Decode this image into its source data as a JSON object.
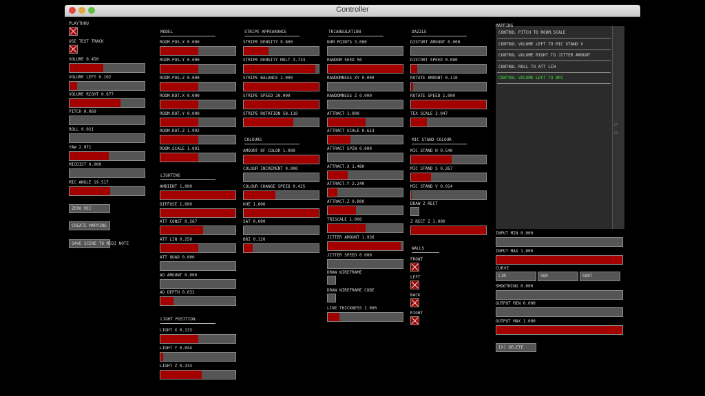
{
  "window": {
    "title": "Controller"
  },
  "left": {
    "toggles": [
      {
        "label": "PLAYTHRU",
        "on": true
      },
      {
        "label": "USE TEST TRACK",
        "on": true
      }
    ],
    "sliders": [
      {
        "label": "VOLUME   0.450",
        "value": 0.45
      },
      {
        "label": "VOLUME LEFT   0.102",
        "value": 0.102
      },
      {
        "label": "VOLUME RIGHT   0.677",
        "value": 0.677
      },
      {
        "label": "PITCH   0.060",
        "value": 0.0
      },
      {
        "label": "ROLL   0.021",
        "value": 0.0
      },
      {
        "label": "YAW   2.971",
        "value": 0.52
      },
      {
        "label": "MICDIST   0.000",
        "value": 0.0
      },
      {
        "label": "MIC ANGLE   19.517",
        "value": 0.54
      }
    ],
    "buttons": [
      "ZERO MIC",
      "CREATE MAPPING",
      "SAVE SCENE TO MIDI NOTE"
    ]
  },
  "model": {
    "header": "MODEL",
    "sliders": [
      {
        "label": "ROOM.POS.X   0.000",
        "value": 0.5
      },
      {
        "label": "ROOM.POS.Y   0.000",
        "value": 0.5
      },
      {
        "label": "ROOM.POS.Z   0.000",
        "value": 0.5
      },
      {
        "label": "ROOM.ROT.X   0.000",
        "value": 0.5
      },
      {
        "label": "ROOM.ROT.Y   0.000",
        "value": 0.5
      },
      {
        "label": "ROOM.ROT.Z   1.992",
        "value": 0.5
      },
      {
        "label": "ROOM.SCALE   1.001",
        "value": 0.5
      }
    ]
  },
  "lighting": {
    "header": "LIGHTING",
    "sliders": [
      {
        "label": "AMBIENT   1.000",
        "value": 1.0
      },
      {
        "label": "DIFFUSE   1.000",
        "value": 1.0
      },
      {
        "label": "ATT CONST   0.567",
        "value": 0.57
      },
      {
        "label": "ATT LIN   0.250",
        "value": 0.5
      },
      {
        "label": "ATT QUAD   0.000",
        "value": 0.0
      },
      {
        "label": "AO AMOUNT   0.000",
        "value": 0.0
      },
      {
        "label": "AO DEPTH   0.033",
        "value": 0.17
      }
    ]
  },
  "lightpos": {
    "header": "LIGHT POSITION",
    "sliders": [
      {
        "label": "LIGHT X   0.133",
        "value": 0.5
      },
      {
        "label": "LIGHT Y   0.044",
        "value": 0.04
      },
      {
        "label": "LIGHT Z   0.333",
        "value": 0.55
      }
    ]
  },
  "stripe": {
    "header": "STRIPE APPEARANCE",
    "sliders": [
      {
        "label": "STRIPE DENSITY   9.800",
        "value": 0.33
      },
      {
        "label": "STRIPE DENSITY MULT   3.733",
        "value": 0.95
      },
      {
        "label": "STRIPE BALANCE   1.000",
        "value": 1.0
      },
      {
        "label": "STRIPE SPEED   20.000",
        "value": 1.0
      },
      {
        "label": "STRIPE ROTATION   58.110",
        "value": 0.66
      }
    ]
  },
  "colours": {
    "header": "COLOURS",
    "sliders": [
      {
        "label": "AMOUNT OF COLOR   1.000",
        "value": 1.0
      },
      {
        "label": "COLOUR INCREMENT   0.000",
        "value": 0.0
      },
      {
        "label": "COLOUR CHANGE SPEED   0.425",
        "value": 0.42
      },
      {
        "label": "HUE   1.000",
        "value": 1.0
      },
      {
        "label": "SAT   0.000",
        "value": 0.0
      },
      {
        "label": "BRI   0.120",
        "value": 0.12
      }
    ]
  },
  "triangulation": {
    "header": "TRIANGULATION",
    "sliders": [
      {
        "label": "NUM POINTS   3.000",
        "value": 0.0
      },
      {
        "label": "RANDOM SEED   50",
        "value": 1.0
      },
      {
        "label": "RANDOMNESS XY   0.000",
        "value": 0.0
      },
      {
        "label": "RANDOMNESS Z   0.000",
        "value": 0.0
      },
      {
        "label": "ATTRACT   1.000",
        "value": 0.5
      },
      {
        "label": "ATTRACT SCALE   0.613",
        "value": 0.3
      },
      {
        "label": "ATTRACT SPIN   0.000",
        "value": 0.0
      },
      {
        "label": "ATTRACT.X   1.480",
        "value": 0.27
      },
      {
        "label": "ATTRACT.Y   2.240",
        "value": 0.13
      },
      {
        "label": "ATTRACT.Z   0.800",
        "value": 0.38
      },
      {
        "label": "TRISCALE   1.000",
        "value": 0.5
      },
      {
        "label": "JITTER AMOUNT   1.936",
        "value": 0.97
      },
      {
        "label": "JITTER SPEED   0.000",
        "value": 0.0
      }
    ],
    "toggles": [
      {
        "label": "DRAW WIREFRAME",
        "on": false
      },
      {
        "label": "DRAW WIREFRAME CUBE",
        "on": false
      }
    ],
    "line_thickness": {
      "label": "LINE THICKNESS   2.900",
      "value": 0.16
    }
  },
  "dazzle": {
    "header": "DAZZLE",
    "sliders": [
      {
        "label": "DISTORT AMOUNT   0.000",
        "value": 0.0
      },
      {
        "label": "DISTORT SPEED   0.080",
        "value": 0.08
      },
      {
        "label": "ROTATE AMOUNT   0.110",
        "value": 0.03
      },
      {
        "label": "ROTATE SPEED   1.000",
        "value": 1.0
      },
      {
        "label": "TEX SCALE   3.047",
        "value": 0.21
      }
    ]
  },
  "micstand": {
    "header": "MIC STAND COLOUR",
    "sliders": [
      {
        "label": "MIC STAND H   0.540",
        "value": 0.54
      },
      {
        "label": "MIC STAND S   0.267",
        "value": 0.27
      },
      {
        "label": "MIC STAND V   0.014",
        "value": 0.01
      }
    ],
    "draw_z_rect": {
      "label": "DRAW Z RECT",
      "on": false
    },
    "z_rect_z": {
      "label": "Z RECT Z   1.000",
      "value": 1.0
    }
  },
  "walls": {
    "header": "WALLS",
    "toggles": [
      {
        "label": "FRONT",
        "on": true
      },
      {
        "label": "LEFT",
        "on": true
      },
      {
        "label": "BACK",
        "on": true
      },
      {
        "label": "RIGHT",
        "on": true
      }
    ]
  },
  "mapping": {
    "header": "MAPPING",
    "items": [
      "CONTROL PITCH TO ROOM.SCALE",
      "CONTROL VOLUME LEFT TO MIC STAND V",
      "CONTROL VOLUME RIGHT TO JITTER AMOUNT",
      "CONTROL ROLL TO ATT LIN",
      "CONTROL VOLUME LEFT TO BRI"
    ],
    "selected_index": 4,
    "scroll_up": "UP",
    "scroll_down": "DN",
    "input_min": {
      "label": "INPUT MIN   0.000",
      "value": 0.0
    },
    "input_max": {
      "label": "INPUT MAX   1.000",
      "value": 1.0
    },
    "curve_label": "CURVE",
    "curve_options": [
      "LIN",
      "SQR",
      "SQRT"
    ],
    "smoothing": {
      "label": "SMOOTHING   0.000",
      "value": 0.0
    },
    "output_min": {
      "label": "OUTPUT MIN   0.000",
      "value": 0.0
    },
    "output_max": {
      "label": "OUTPUT MAX   1.000",
      "value": 1.0
    },
    "delete_label": "[X] DELETE"
  },
  "colors": {
    "fill": "#a30000",
    "track": "#555555",
    "selected_text": "#3ddc3d"
  }
}
